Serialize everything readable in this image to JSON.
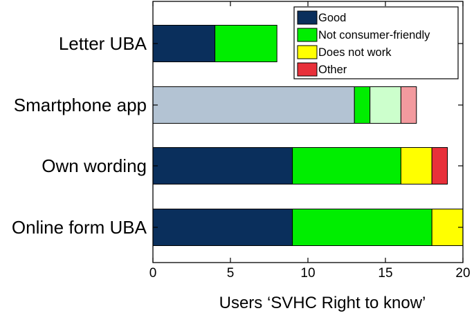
{
  "chart_data": {
    "type": "bar",
    "orientation": "horizontal",
    "stacked": true,
    "categories": [
      "Letter UBA",
      "Smartphone app",
      "Own wording",
      "Online form UBA"
    ],
    "series": [
      {
        "name": "Good",
        "color": "#0a2f5c",
        "values": [
          4,
          0,
          9,
          9
        ]
      },
      {
        "name": "Not consumer-friendly",
        "color": "#00ee00",
        "values": [
          4,
          1,
          7,
          9
        ]
      },
      {
        "name": "Does not work",
        "color": "#ffff00",
        "values": [
          0,
          0,
          2,
          2
        ]
      },
      {
        "name": "Other",
        "color": "#e8303a",
        "values": [
          0,
          0,
          1,
          0
        ]
      }
    ],
    "extra_segments": [
      {
        "category": "Smartphone app",
        "start": 0,
        "end": 13,
        "color": "#b3c3d3"
      },
      {
        "category": "Smartphone app",
        "start": 14,
        "end": 16,
        "color": "#ccffcc"
      },
      {
        "category": "Smartphone app",
        "start": 16,
        "end": 17,
        "color": "#f29a9e"
      }
    ],
    "series_offsets": {
      "Smartphone app": 13
    },
    "xlabel": "Users ‘SVHC Right to know’",
    "ylabel": "",
    "xlim": [
      0,
      20
    ],
    "xticks": [
      0,
      5,
      10,
      15,
      20
    ],
    "grid": false,
    "legend_position": "top-right"
  }
}
